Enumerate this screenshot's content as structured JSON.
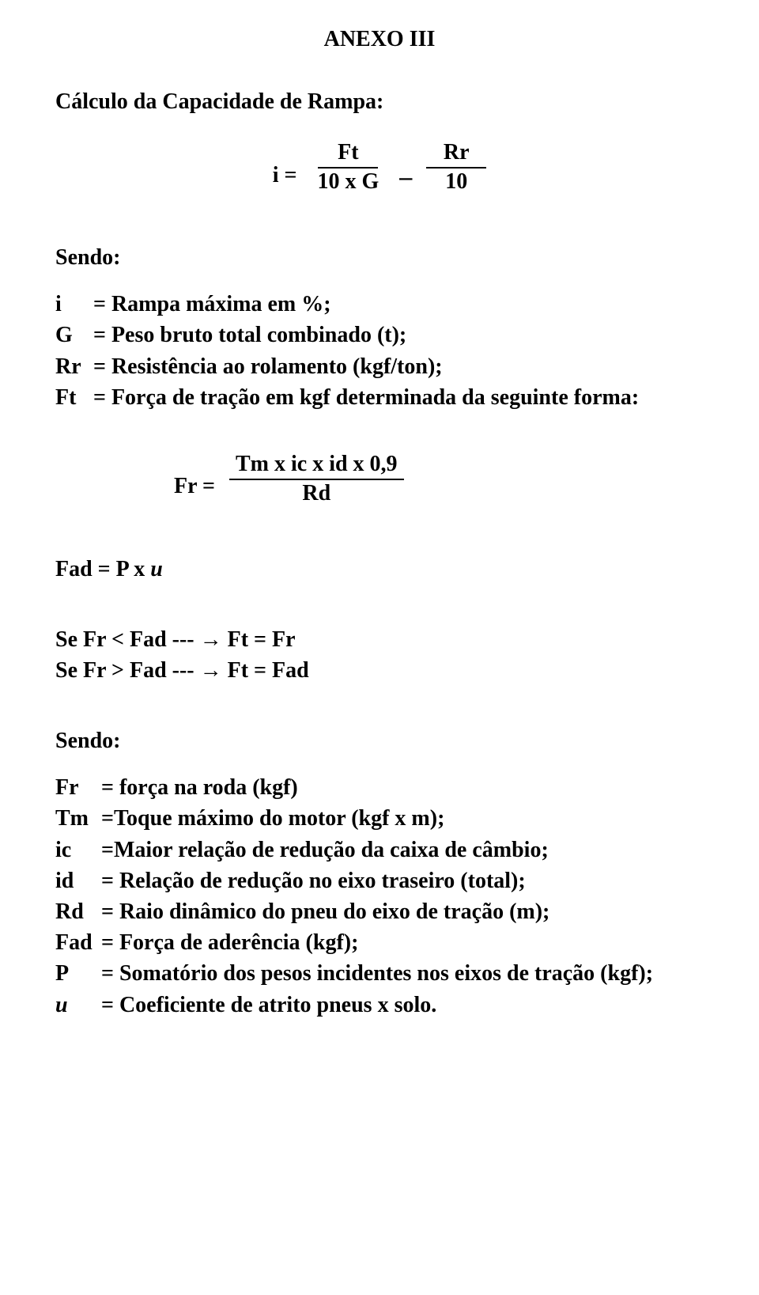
{
  "title": "ANEXO III",
  "section_heading": "Cálculo da Capacidade de Rampa:",
  "eq1": {
    "lhs": "i =",
    "frac1_num": "Ft",
    "frac1_den": "10 x G",
    "minus": "_",
    "frac2_num": "Rr",
    "frac2_den": "10"
  },
  "sendo_label": "Sendo:",
  "defs1": {
    "i": {
      "sym": "i",
      "eq": "= Rampa máxima em %;"
    },
    "G": {
      "sym": "G",
      "eq": "= Peso bruto total combinado (t);"
    },
    "Rr": {
      "sym": "Rr",
      "eq": "= Resistência ao rolamento (kgf/ton);"
    },
    "Ft": {
      "sym": "Ft",
      "eq": "= Força de tração em kgf determinada da seguinte forma:"
    }
  },
  "eq2": {
    "lhs": "Fr =",
    "num": "Tm x ic x id x 0,9",
    "den": "Rd"
  },
  "fad_eq_prefix": "Fad = P x ",
  "fad_eq_u": "u",
  "cond1": "Se Fr < Fad --- → Ft = Fr",
  "cond2": "Se Fr > Fad --- → Ft = Fad",
  "defs2": {
    "Fr": {
      "sym": "Fr",
      "eq": "= força na roda (kgf)"
    },
    "Tm": {
      "sym": "Tm",
      "eq": "=Toque máximo do motor (kgf x m);"
    },
    "ic": {
      "sym": "ic",
      "eq": "=Maior relação de redução da caixa de câmbio;"
    },
    "id": {
      "sym": "id",
      "eq": "= Relação de redução no eixo traseiro (total);"
    },
    "Rd": {
      "sym": "Rd",
      "eq": "= Raio dinâmico do pneu do eixo de tração (m);"
    },
    "Fad": {
      "sym": "Fad",
      "eq": "= Força de aderência (kgf);"
    },
    "P": {
      "sym": "P",
      "eq": "= Somatório dos pesos incidentes nos eixos de tração (kgf);"
    },
    "u": {
      "sym": "u",
      "eq": "= Coeficiente de atrito pneus x solo."
    }
  }
}
